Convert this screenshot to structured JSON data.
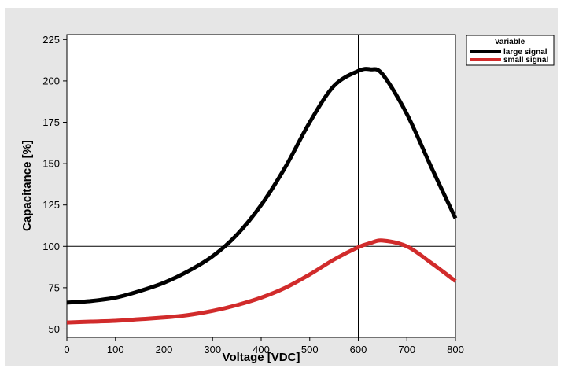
{
  "chart_data": {
    "type": "line",
    "title": "",
    "xlabel": "Voltage [VDC]",
    "ylabel": "Capacitance [%]",
    "xlim": [
      0,
      800
    ],
    "ylim": [
      45,
      228
    ],
    "xticks": [
      0,
      100,
      200,
      300,
      400,
      500,
      600,
      700,
      800
    ],
    "yticks": [
      50,
      75,
      100,
      125,
      150,
      175,
      200,
      225
    ],
    "reference_lines": {
      "x": 600,
      "y": 100
    },
    "grid": false,
    "legend": {
      "title": "Variable",
      "placement": "top-right outside"
    },
    "series": [
      {
        "name": "large signal",
        "color": "#000000",
        "x": [
          0,
          50,
          100,
          150,
          200,
          250,
          300,
          350,
          400,
          450,
          500,
          550,
          600,
          625,
          650,
          700,
          750,
          800
        ],
        "y": [
          66,
          67,
          69,
          73,
          78,
          85,
          94,
          107,
          125,
          148,
          175,
          197,
          206,
          207,
          204,
          180,
          148,
          117
        ]
      },
      {
        "name": "small signal",
        "color": "#d12b2b",
        "x": [
          0,
          50,
          100,
          150,
          200,
          250,
          300,
          350,
          400,
          450,
          500,
          550,
          600,
          625,
          650,
          700,
          750,
          800
        ],
        "y": [
          54,
          54.5,
          55,
          56,
          57,
          58.5,
          61,
          64.5,
          69,
          75,
          83,
          92,
          99.5,
          102,
          103.5,
          100,
          90,
          79
        ]
      }
    ]
  }
}
